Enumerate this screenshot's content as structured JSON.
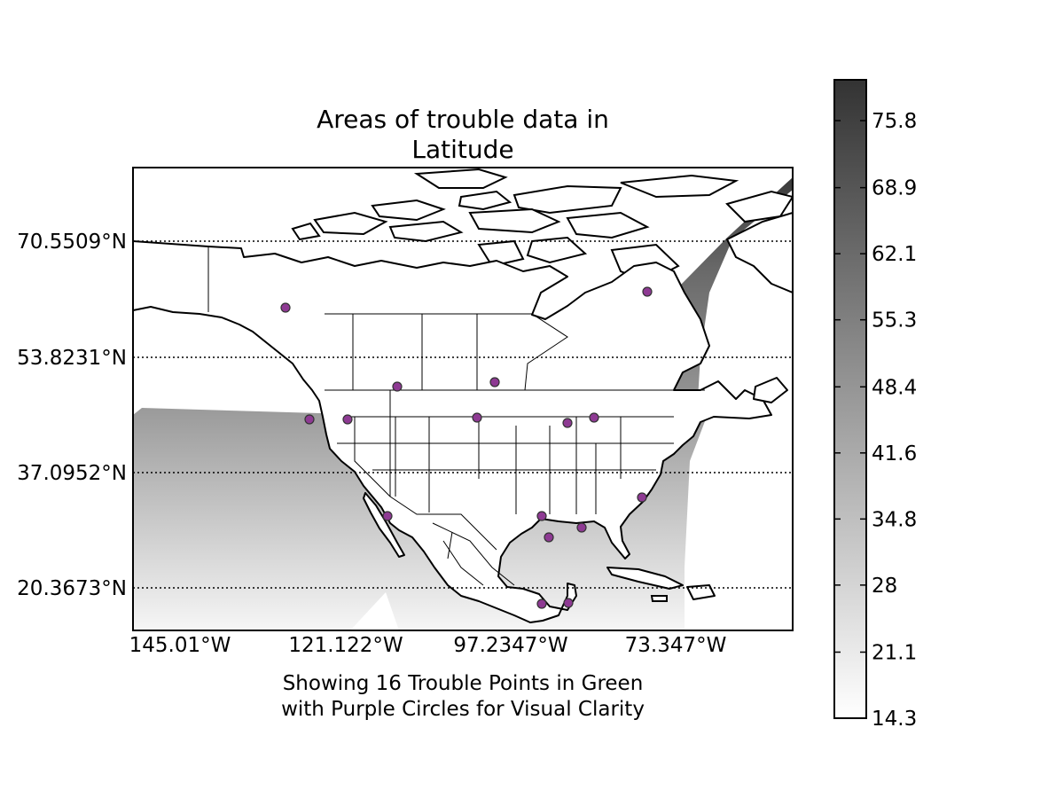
{
  "title_lines": [
    "Areas of trouble data in",
    "Latitude"
  ],
  "subtitle_lines": [
    "Showing 16 Trouble Points in Green",
    "with Purple Circles for Visual Clarity"
  ],
  "map": {
    "latitude_labels": [
      "70.5509°N",
      "53.8231°N",
      "37.0952°N",
      "20.3673°N"
    ],
    "longitude_labels": [
      "145.01°W",
      "121.122°W",
      "97.2347°W",
      "73.347°W"
    ],
    "marker_color": "#8e3a93",
    "trouble_points_count": 16
  },
  "colorbar": {
    "min": 14.3,
    "max": 80.0,
    "tick_labels": [
      "75.8",
      "68.9",
      "62.1",
      "55.3",
      "48.4",
      "41.6",
      "34.8",
      "28",
      "21.1",
      "14.3"
    ],
    "color_low": "#ffffff",
    "color_high": "#333333"
  }
}
